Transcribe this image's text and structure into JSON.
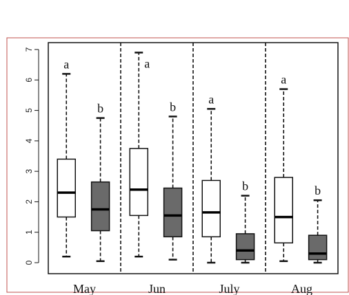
{
  "chart_data": {
    "type": "box",
    "categories": [
      "May",
      "Jun",
      "July",
      "Aug"
    ],
    "ylim": [
      0,
      7
    ],
    "yticks": [
      "0",
      "1",
      "2",
      "3",
      "4",
      "5",
      "6",
      "7"
    ],
    "grid": false,
    "legend": "none",
    "series": [
      {
        "fill": "#ffffff",
        "boxes": [
          {
            "whisker_low": 0.2,
            "q1": 1.5,
            "median": 2.3,
            "q3": 3.4,
            "whisker_high": 6.2,
            "label": "a"
          },
          {
            "whisker_low": 0.2,
            "q1": 1.55,
            "median": 2.4,
            "q3": 3.75,
            "whisker_high": 6.9,
            "label": "a"
          },
          {
            "whisker_low": 0.0,
            "q1": 0.85,
            "median": 1.65,
            "q3": 2.7,
            "whisker_high": 5.05,
            "label": "a"
          },
          {
            "whisker_low": 0.05,
            "q1": 0.65,
            "median": 1.5,
            "q3": 2.8,
            "whisker_high": 5.7,
            "label": "a"
          }
        ]
      },
      {
        "fill": "#6a6a6a",
        "boxes": [
          {
            "whisker_low": 0.05,
            "q1": 1.05,
            "median": 1.75,
            "q3": 2.65,
            "whisker_high": 4.75,
            "label": "b"
          },
          {
            "whisker_low": 0.1,
            "q1": 0.85,
            "median": 1.55,
            "q3": 2.45,
            "whisker_high": 4.8,
            "label": "b"
          },
          {
            "whisker_low": 0.0,
            "q1": 0.1,
            "median": 0.4,
            "q3": 0.95,
            "whisker_high": 2.2,
            "label": "b"
          },
          {
            "whisker_low": 0.0,
            "q1": 0.1,
            "median": 0.3,
            "q3": 0.9,
            "whisker_high": 2.05,
            "label": "b"
          }
        ]
      }
    ],
    "colors": {
      "frame": "#c0504d",
      "axis": "#111111"
    }
  }
}
